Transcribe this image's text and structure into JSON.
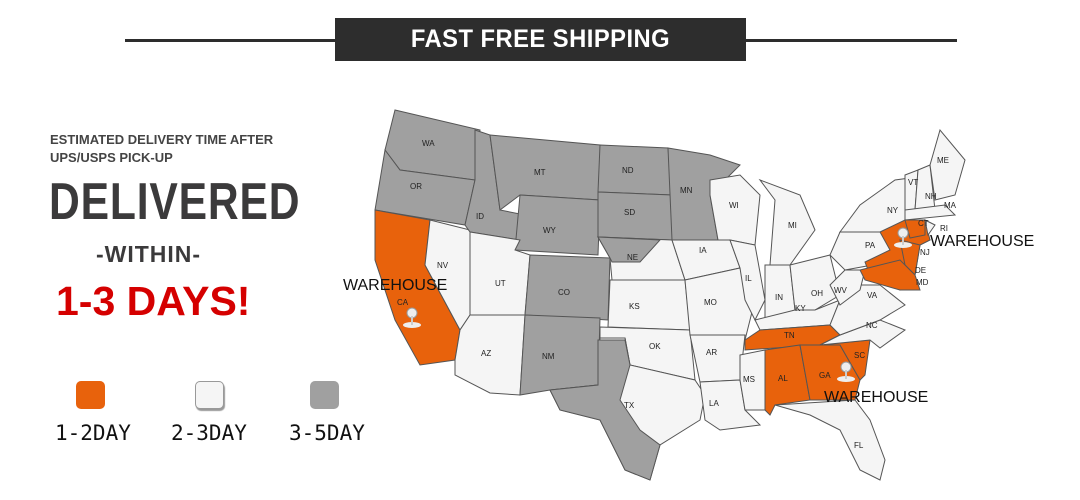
{
  "header": {
    "title": "FAST FREE SHIPPING"
  },
  "left": {
    "subtitle_line1": "ESTIMATED DELIVERY TIME AFTER",
    "subtitle_line2": "UPS/USPS PICK-UP",
    "headline": "DELIVERED",
    "within": "-WITHIN-",
    "days": "1-3 DAYS!"
  },
  "legend": [
    {
      "label": "1-2DAY",
      "color": "#e8620c"
    },
    {
      "label": "2-3DAY",
      "color": "#f5f5f5"
    },
    {
      "label": "3-5DAY",
      "color": "#a0a0a0"
    }
  ],
  "map": {
    "warehouse_label": "WAREHOUSE",
    "warehouses": [
      "WAREHOUSE",
      "WAREHOUSE",
      "WAREHOUSE"
    ],
    "states": {
      "WA": "WA",
      "OR": "OR",
      "CA": "CA",
      "NV": "NV",
      "ID": "ID",
      "MT": "MT",
      "WY": "WY",
      "UT": "UT",
      "CO": "CO",
      "AZ": "AZ",
      "NM": "NM",
      "ND": "ND",
      "SD": "SD",
      "NE": "NE",
      "KS": "KS",
      "OK": "OK",
      "TX": "TX",
      "MN": "MN",
      "IA": "IA",
      "MO": "MO",
      "AR": "AR",
      "LA": "LA",
      "WI": "WI",
      "IL": "IL",
      "MI": "MI",
      "IN": "IN",
      "OH": "OH",
      "KY": "KY",
      "TN": "TN",
      "MS": "MS",
      "AL": "AL",
      "GA": "GA",
      "FL": "FL",
      "SC": "SC",
      "NC": "NC",
      "VA": "VA",
      "WV": "WV",
      "PA": "PA",
      "NY": "NY",
      "NJ": "NJ",
      "DE": "DE",
      "MD": "MD",
      "VT": "VT",
      "NH": "NH",
      "ME": "ME",
      "MA": "MA",
      "CT": "CT",
      "RI": "RI"
    },
    "colors": {
      "fast": "#e8620c",
      "medium": "#f5f5f5",
      "slow": "#a0a0a0"
    }
  }
}
